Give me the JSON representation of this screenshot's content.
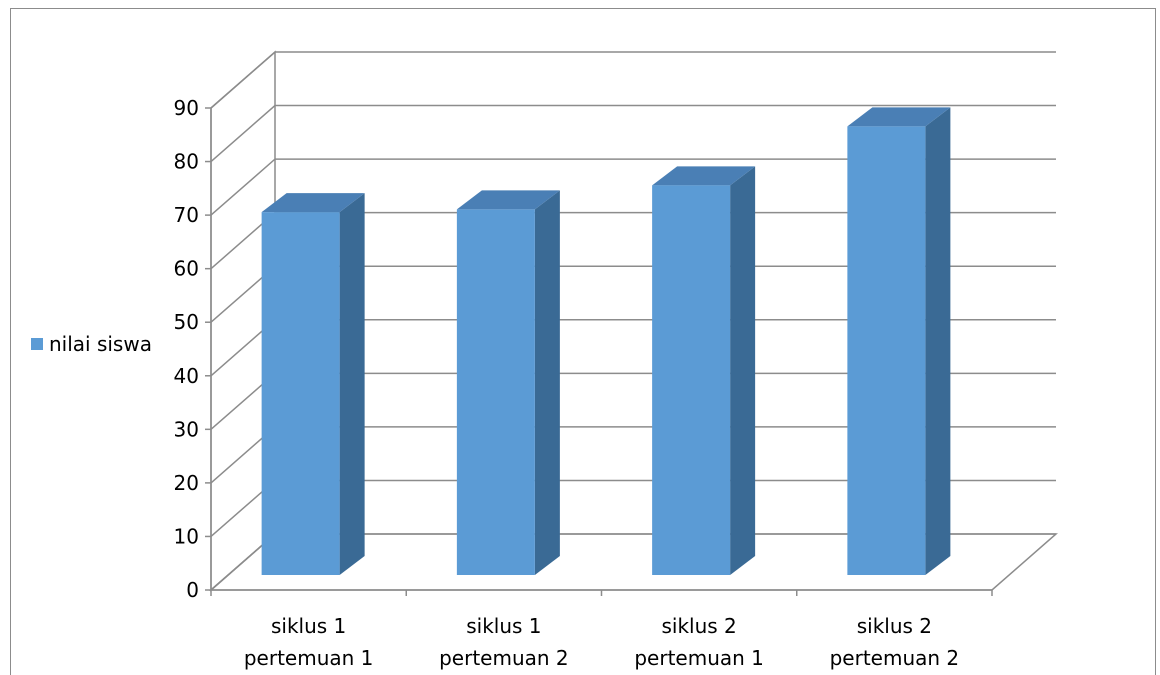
{
  "chart_data": {
    "type": "bar",
    "style": "3d-column",
    "categories": [
      [
        "siklus 1",
        "pertemuan 1"
      ],
      [
        "siklus 1",
        "pertemuan 2"
      ],
      [
        "siklus 2",
        "pertemuan 1"
      ],
      [
        "siklus 2",
        "pertemuan 2"
      ]
    ],
    "series": [
      {
        "name": "nilai siswa",
        "values": [
          70,
          70.5,
          75,
          86
        ],
        "color": "#5b9bd5"
      }
    ],
    "title": "",
    "xlabel": "",
    "ylabel": "",
    "ylim": [
      0,
      90
    ],
    "yticks": [
      0,
      10,
      20,
      30,
      40,
      50,
      60,
      70,
      80,
      90
    ],
    "grid": true,
    "legend": "left"
  }
}
